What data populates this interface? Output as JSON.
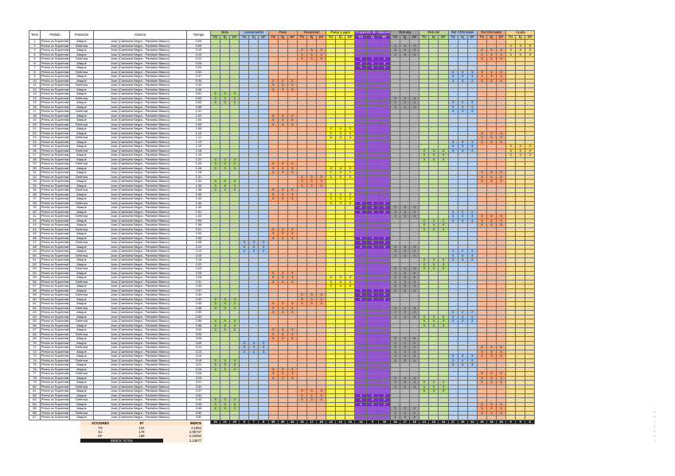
{
  "sheet": {
    "headers": {
      "time": "Tiem",
      "partido": "Partido",
      "posesion": "Posesión",
      "alumno": "Alumno",
      "tiempo": "Tiempo",
      "groups": [
        {
          "label": "Bote",
          "color": "#b7d98a"
        },
        {
          "label": "Lanzamiento",
          "color": "#a9c7ea"
        },
        {
          "label": "Pase",
          "color": "#f4a97f"
        },
        {
          "label": "Recepción",
          "color": "#f4a97f"
        },
        {
          "label": "Pasar y jugar",
          "color": "#f7ef2a"
        },
        {
          "label": "Ocupación de espacios",
          "color": "#7a2bc4"
        },
        {
          "label": "Reb atq",
          "color": "#a6a6a6"
        },
        {
          "label": "Reb def",
          "color": "#b7d98a"
        },
        {
          "label": "Def CON balón",
          "color": "#a9c7ea"
        },
        {
          "label": "Def SIN balón",
          "color": "#f4a97f"
        },
        {
          "label": "Ayuda",
          "color": "#f7d77a"
        }
      ],
      "subs": [
        "TG",
        "Ej",
        "EF"
      ]
    },
    "row_text": {
      "partido": "Perna vs Supremat",
      "pos_a": "Ataque",
      "pos_d": "Defensa",
      "alumno": "Jose (Camiseta Negra - Pantalón Blanco)"
    },
    "row_numbers": [
      "1",
      "2",
      "3",
      "4",
      "5",
      "6",
      "7",
      "8",
      "9",
      "10",
      "11",
      "12",
      "13",
      "14",
      "15",
      "16",
      "17",
      "18",
      "19",
      "20",
      "21",
      "22",
      "23",
      "24",
      "25",
      "26",
      "27",
      "28",
      "29",
      "30",
      "31",
      "32",
      "33",
      "34",
      "35",
      "36",
      "37",
      "38",
      "39",
      "40",
      "41",
      "42",
      "43",
      "44",
      "45",
      "46",
      "47",
      "48",
      "49",
      "50",
      "51",
      "52",
      "53",
      "54",
      "55",
      "56",
      "57",
      "58",
      "59",
      "60",
      "61",
      "62",
      "63",
      "64",
      "65",
      "66",
      "67",
      "68",
      "69",
      "70",
      "71",
      "72",
      "73",
      "74",
      "75",
      "76",
      "77",
      "78",
      "79",
      "80",
      "81",
      "82",
      "83",
      "84",
      "85",
      "86",
      "87"
    ],
    "times": [
      "0:05",
      "0:09",
      "0:15",
      "0:19",
      "0:22",
      "0:26",
      "0:29",
      "0:33",
      "0:37",
      "0:39",
      "0:43",
      "0:46",
      "0:51",
      "0:53",
      "0:55",
      "0:58",
      "1:01",
      "1:02",
      "1:04",
      "1:05",
      "1:08",
      "1:10",
      "1:11",
      "1:13",
      "1:15",
      "1:18",
      "1:19",
      "1:22",
      "1:25",
      "1:26",
      "1:28",
      "1:31",
      "1:34",
      "1:36",
      "1:38",
      "1:40",
      "1:44",
      "1:46",
      "1:49",
      "1:51",
      "1:53",
      "1:56",
      "1:58",
      "2:01",
      "2:03",
      "2:06",
      "2:08",
      "2:10",
      "2:13",
      "2:15",
      "2:18",
      "2:20",
      "2:23",
      "2:25",
      "2:28",
      "2:31",
      "2:35",
      "2:37",
      "2:40",
      "2:42",
      "2:45",
      "2:48",
      "2:50",
      "2:53",
      "2:56",
      "2:58",
      "3:00",
      "3:03",
      "3:05",
      "3:09",
      "3:11",
      "3:13",
      "3:16",
      "3:18",
      "3:21",
      "3:24",
      "3:26",
      "3:29",
      "3:31",
      "3:34",
      "3:37",
      "3:40",
      "3:43",
      "3:46",
      "3:48",
      "3:50",
      "3:52"
    ],
    "marks": [
      [
        3,
        2,
        "3"
      ],
      [
        3,
        3,
        "3"
      ],
      [
        3,
        4,
        "3"
      ],
      [
        5,
        4,
        "3"
      ],
      [
        5,
        5,
        "3"
      ],
      [
        5,
        6,
        "3"
      ],
      [
        6,
        1,
        "3"
      ],
      [
        6,
        2,
        "3"
      ],
      [
        6,
        3,
        "3"
      ],
      [
        8,
        7,
        "3"
      ],
      [
        8,
        8,
        "3"
      ],
      [
        8,
        9,
        "3"
      ],
      [
        9,
        2,
        "3"
      ],
      [
        9,
        3,
        "3"
      ],
      [
        9,
        4,
        "3"
      ],
      [
        10,
        1,
        "3"
      ],
      [
        10,
        2,
        "3"
      ],
      [
        10,
        3,
        "3"
      ],
      [
        2,
        9,
        "2"
      ],
      [
        2,
        10,
        "3"
      ],
      [
        2,
        11,
        "3"
      ],
      [
        6,
        13,
        "3"
      ],
      [
        6,
        14,
        "2"
      ],
      [
        6,
        15,
        "3"
      ],
      [
        8,
        14,
        "3"
      ],
      [
        8,
        15,
        "3"
      ],
      [
        8,
        16,
        "3"
      ],
      [
        9,
        7,
        "3"
      ],
      [
        9,
        8,
        "3"
      ],
      [
        9,
        9,
        "3"
      ],
      [
        0,
        12,
        "3"
      ],
      [
        0,
        13,
        "3"
      ],
      [
        0,
        14,
        "3"
      ],
      [
        2,
        17,
        "3"
      ],
      [
        2,
        18,
        "3"
      ],
      [
        2,
        19,
        "3"
      ],
      [
        4,
        20,
        "2"
      ],
      [
        4,
        21,
        "3"
      ],
      [
        4,
        22,
        "3"
      ],
      [
        9,
        21,
        "3"
      ],
      [
        9,
        22,
        "3"
      ],
      [
        9,
        23,
        "3"
      ],
      [
        8,
        23,
        "3"
      ],
      [
        8,
        24,
        "3"
      ],
      [
        8,
        25,
        "3"
      ],
      [
        10,
        24,
        "3"
      ],
      [
        10,
        25,
        "3"
      ],
      [
        10,
        26,
        "3"
      ],
      [
        7,
        25,
        "3"
      ],
      [
        7,
        26,
        "3"
      ],
      [
        7,
        27,
        "3"
      ],
      [
        0,
        27,
        "3"
      ],
      [
        0,
        28,
        "3"
      ],
      [
        0,
        29,
        "3"
      ],
      [
        2,
        28,
        "3"
      ],
      [
        2,
        29,
        "3"
      ],
      [
        2,
        30,
        "3"
      ],
      [
        4,
        29,
        "3"
      ],
      [
        4,
        30,
        "2"
      ],
      [
        4,
        31,
        "3"
      ],
      [
        9,
        30,
        "3"
      ],
      [
        9,
        31,
        "3"
      ],
      [
        9,
        32,
        "3"
      ],
      [
        3,
        31,
        "3"
      ],
      [
        3,
        32,
        "3"
      ],
      [
        3,
        33,
        "3"
      ],
      [
        0,
        32,
        "3"
      ],
      [
        0,
        33,
        "3"
      ],
      [
        0,
        34,
        "3"
      ],
      [
        2,
        34,
        "3"
      ],
      [
        2,
        35,
        "3"
      ],
      [
        2,
        36,
        "3"
      ],
      [
        4,
        35,
        "3"
      ],
      [
        4,
        36,
        "2"
      ],
      [
        4,
        37,
        "3"
      ],
      [
        5,
        37,
        "3"
      ],
      [
        5,
        38,
        "2"
      ],
      [
        5,
        39,
        "3"
      ],
      [
        6,
        38,
        "3"
      ],
      [
        6,
        39,
        "3"
      ],
      [
        6,
        40,
        "3"
      ],
      [
        8,
        39,
        "2"
      ],
      [
        8,
        40,
        "3"
      ],
      [
        8,
        41,
        "3"
      ],
      [
        9,
        40,
        "3"
      ],
      [
        9,
        41,
        "3"
      ],
      [
        9,
        42,
        "3"
      ],
      [
        7,
        41,
        "2"
      ],
      [
        7,
        42,
        "3"
      ],
      [
        7,
        43,
        "3"
      ],
      [
        2,
        43,
        "3"
      ],
      [
        2,
        44,
        "3"
      ],
      [
        2,
        45,
        "3"
      ],
      [
        5,
        45,
        "3"
      ],
      [
        5,
        46,
        "3"
      ],
      [
        5,
        47,
        "3"
      ],
      [
        1,
        46,
        "3"
      ],
      [
        1,
        47,
        "3"
      ],
      [
        1,
        48,
        "2"
      ],
      [
        6,
        47,
        "3"
      ],
      [
        6,
        48,
        "3"
      ],
      [
        6,
        49,
        "3"
      ],
      [
        8,
        48,
        "2"
      ],
      [
        8,
        49,
        "3"
      ],
      [
        8,
        50,
        "3"
      ],
      [
        7,
        50,
        "3"
      ],
      [
        7,
        51,
        "3"
      ],
      [
        7,
        52,
        "3"
      ],
      [
        6,
        52,
        "3"
      ],
      [
        6,
        53,
        "3"
      ],
      [
        6,
        54,
        "3"
      ],
      [
        2,
        53,
        "3"
      ],
      [
        2,
        54,
        "3"
      ],
      [
        2,
        55,
        "3"
      ],
      [
        4,
        54,
        "2"
      ],
      [
        4,
        55,
        "3"
      ],
      [
        4,
        56,
        "3"
      ],
      [
        6,
        55,
        "3"
      ],
      [
        6,
        56,
        "3"
      ],
      [
        6,
        57,
        "3"
      ],
      [
        5,
        57,
        "3"
      ],
      [
        5,
        58,
        "3"
      ],
      [
        5,
        59,
        "3"
      ],
      [
        3,
        58,
        "3"
      ],
      [
        3,
        59,
        "3"
      ],
      [
        3,
        60,
        "3"
      ],
      [
        0,
        59,
        "3"
      ],
      [
        0,
        60,
        "3"
      ],
      [
        0,
        61,
        "3"
      ],
      [
        2,
        60,
        "3"
      ],
      [
        2,
        61,
        "3"
      ],
      [
        2,
        62,
        "3"
      ],
      [
        6,
        61,
        "3"
      ],
      [
        6,
        62,
        "2"
      ],
      [
        6,
        63,
        "3"
      ],
      [
        8,
        62,
        "2"
      ],
      [
        8,
        63,
        "3"
      ],
      [
        8,
        64,
        "3"
      ],
      [
        7,
        63,
        "3"
      ],
      [
        7,
        64,
        "3"
      ],
      [
        7,
        65,
        "3"
      ],
      [
        0,
        64,
        "3"
      ],
      [
        0,
        65,
        "3"
      ],
      [
        0,
        66,
        "3"
      ],
      [
        2,
        66,
        "3"
      ],
      [
        2,
        67,
        "3"
      ],
      [
        2,
        68,
        "3"
      ],
      [
        6,
        68,
        "3"
      ],
      [
        6,
        69,
        "3"
      ],
      [
        6,
        70,
        "3"
      ],
      [
        1,
        69,
        "3"
      ],
      [
        1,
        70,
        "3"
      ],
      [
        1,
        71,
        "3"
      ],
      [
        6,
        71,
        "3"
      ],
      [
        6,
        72,
        "3"
      ],
      [
        6,
        73,
        "3"
      ],
      [
        9,
        70,
        "3"
      ],
      [
        9,
        71,
        "3"
      ],
      [
        9,
        72,
        "3"
      ],
      [
        8,
        72,
        "3"
      ],
      [
        8,
        73,
        "2"
      ],
      [
        8,
        74,
        "3"
      ],
      [
        0,
        73,
        "3"
      ],
      [
        0,
        74,
        "3"
      ],
      [
        0,
        75,
        "3"
      ],
      [
        2,
        75,
        "3"
      ],
      [
        2,
        76,
        "3"
      ],
      [
        2,
        77,
        "3"
      ],
      [
        9,
        76,
        "3"
      ],
      [
        9,
        77,
        "3"
      ],
      [
        9,
        78,
        "3"
      ],
      [
        6,
        77,
        "3"
      ],
      [
        6,
        78,
        "3"
      ],
      [
        6,
        79,
        "3"
      ],
      [
        7,
        78,
        "2"
      ],
      [
        7,
        79,
        "3"
      ],
      [
        7,
        80,
        "3"
      ],
      [
        3,
        80,
        "3"
      ],
      [
        3,
        81,
        "2"
      ],
      [
        3,
        82,
        "3"
      ],
      [
        5,
        81,
        "3"
      ],
      [
        5,
        82,
        "3"
      ],
      [
        5,
        83,
        "3"
      ],
      [
        0,
        82,
        "3"
      ],
      [
        0,
        83,
        "3"
      ],
      [
        0,
        84,
        "3"
      ],
      [
        9,
        83,
        "3"
      ],
      [
        9,
        84,
        "3"
      ],
      [
        9,
        85,
        "3"
      ],
      [
        6,
        84,
        "3"
      ],
      [
        6,
        85,
        "3"
      ],
      [
        6,
        86,
        "3"
      ]
    ],
    "totals": [
      "24",
      "21",
      "20",
      "9",
      "7",
      "8",
      "35",
      "30",
      "34",
      "15",
      "17",
      "18",
      "14",
      "12",
      "16",
      "14",
      "9",
      "16",
      "18",
      "17",
      "18",
      "14",
      "13",
      "14",
      "17",
      "15",
      "14",
      "19",
      "18",
      "18",
      "9",
      "9",
      "6"
    ]
  },
  "summary": {
    "rows": [
      {
        "label": "ACCIONES",
        "value": "87",
        "index": "INDICE"
      },
      {
        "label": "TG",
        "value": "191",
        "index": "2,1954"
      },
      {
        "label": "EJ",
        "value": "179",
        "index": "2,05747"
      },
      {
        "label": "EF",
        "value": "188",
        "index": "2,16092"
      }
    ],
    "total_label": "INDICE TOTAL",
    "total_value": "2,13877"
  }
}
